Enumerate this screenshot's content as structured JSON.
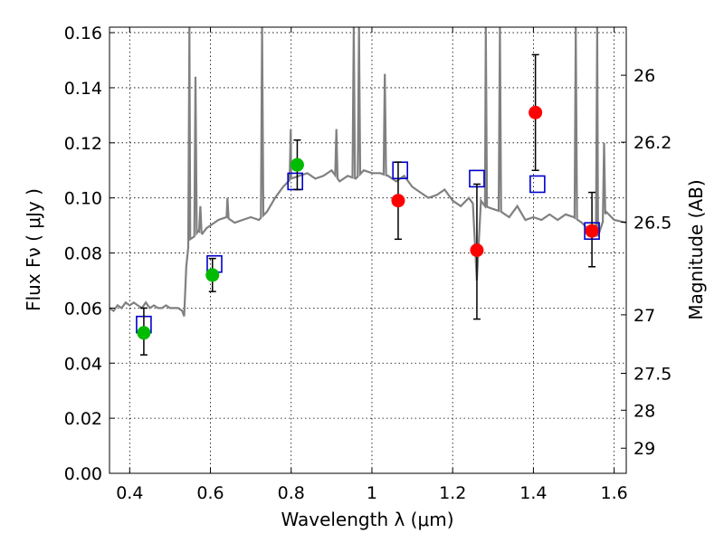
{
  "chart_data": {
    "type": "scatter",
    "xlabel": "Wavelength  λ (μm)",
    "ylabel": "Flux  Fν  ( μJy )",
    "ylabel2": "Magnitude (AB)",
    "xlim": [
      0.35,
      1.63
    ],
    "ylim": [
      0.0,
      0.162
    ],
    "grid": true,
    "x_ticks": [
      0.4,
      0.6,
      0.8,
      1.0,
      1.2,
      1.4,
      1.6
    ],
    "x_tick_labels": [
      "0.4",
      "0.6",
      "0.8",
      "1",
      "1.2",
      "1.4",
      "1.6"
    ],
    "y_ticks": [
      0.0,
      0.02,
      0.04,
      0.06,
      0.08,
      0.1,
      0.12,
      0.14,
      0.16
    ],
    "y_tick_labels": [
      "0.00",
      "0.02",
      "0.04",
      "0.06",
      "0.08",
      "0.10",
      "0.12",
      "0.14",
      "0.16"
    ],
    "mag_ticks": [
      26,
      26.2,
      26.5,
      27,
      27.5,
      28,
      29
    ],
    "mag_tick_labels": [
      "26",
      "26.2",
      "26.5",
      "27",
      "27.5",
      "28",
      "29"
    ],
    "colors": {
      "spectrum": "#808080",
      "model": "#0000cc",
      "green": "#00bb00",
      "red": "#ff0000",
      "errorbar": "#000000"
    },
    "spectrum": {
      "x": [
        0.35,
        0.36,
        0.37,
        0.38,
        0.39,
        0.4,
        0.41,
        0.42,
        0.43,
        0.44,
        0.45,
        0.46,
        0.47,
        0.48,
        0.49,
        0.5,
        0.52,
        0.53,
        0.535,
        0.54,
        0.545,
        0.55,
        0.56,
        0.57,
        0.58,
        0.59,
        0.6,
        0.62,
        0.64,
        0.66,
        0.68,
        0.7,
        0.72,
        0.74,
        0.76,
        0.78,
        0.8,
        0.82,
        0.84,
        0.86,
        0.88,
        0.9,
        0.92,
        0.94,
        0.96,
        0.98,
        1.0,
        1.02,
        1.04,
        1.06,
        1.08,
        1.1,
        1.12,
        1.14,
        1.16,
        1.18,
        1.2,
        1.22,
        1.24,
        1.25,
        1.26,
        1.27,
        1.28,
        1.3,
        1.32,
        1.34,
        1.36,
        1.38,
        1.4,
        1.42,
        1.44,
        1.46,
        1.48,
        1.5,
        1.52,
        1.54,
        1.56,
        1.58,
        1.6,
        1.63
      ],
      "y": [
        0.06,
        0.059,
        0.061,
        0.06,
        0.062,
        0.061,
        0.062,
        0.061,
        0.06,
        0.062,
        0.06,
        0.061,
        0.06,
        0.06,
        0.061,
        0.06,
        0.06,
        0.059,
        0.057,
        0.075,
        0.082,
        0.085,
        0.086,
        0.088,
        0.087,
        0.089,
        0.09,
        0.092,
        0.093,
        0.091,
        0.092,
        0.093,
        0.092,
        0.095,
        0.1,
        0.104,
        0.107,
        0.108,
        0.109,
        0.107,
        0.108,
        0.11,
        0.106,
        0.108,
        0.107,
        0.11,
        0.109,
        0.109,
        0.108,
        0.106,
        0.108,
        0.104,
        0.102,
        0.1,
        0.101,
        0.103,
        0.099,
        0.097,
        0.1,
        0.098,
        0.07,
        0.099,
        0.097,
        0.096,
        0.095,
        0.093,
        0.097,
        0.092,
        0.093,
        0.092,
        0.094,
        0.092,
        0.094,
        0.093,
        0.091,
        0.088,
        0.086,
        0.095,
        0.092,
        0.091
      ]
    },
    "emission_lines": [
      {
        "x": 0.548,
        "peak": 0.175
      },
      {
        "x": 0.563,
        "peak": 0.144
      },
      {
        "x": 0.575,
        "peak": 0.097
      },
      {
        "x": 0.642,
        "peak": 0.1
      },
      {
        "x": 0.728,
        "peak": 0.175
      },
      {
        "x": 0.799,
        "peak": 0.125
      },
      {
        "x": 0.912,
        "peak": 0.125
      },
      {
        "x": 0.955,
        "peak": 0.175
      },
      {
        "x": 0.968,
        "peak": 0.175
      },
      {
        "x": 1.032,
        "peak": 0.145
      },
      {
        "x": 1.282,
        "peak": 0.175
      },
      {
        "x": 1.317,
        "peak": 0.162
      },
      {
        "x": 1.505,
        "peak": 0.175
      },
      {
        "x": 1.558,
        "peak": 0.175
      },
      {
        "x": 1.575,
        "peak": 0.12
      }
    ],
    "series": [
      {
        "marker": "square",
        "x": [
          0.435,
          0.61,
          0.81,
          1.07,
          1.26,
          1.41,
          1.545
        ],
        "y": [
          0.054,
          0.076,
          0.106,
          0.11,
          0.107,
          0.105,
          0.088
        ]
      },
      {
        "marker": "circle",
        "color": "green",
        "x": [
          0.435,
          0.605,
          0.815
        ],
        "y": [
          0.051,
          0.072,
          0.112
        ],
        "yerr": [
          [
            0.043,
            0.06
          ],
          [
            0.066,
            0.078
          ],
          [
            0.103,
            0.121
          ]
        ]
      },
      {
        "marker": "circle",
        "color": "red",
        "x": [
          1.065,
          1.26,
          1.405,
          1.545
        ],
        "y": [
          0.099,
          0.081,
          0.131,
          0.088
        ],
        "yerr": [
          [
            0.085,
            0.113
          ],
          [
            0.056,
            0.105
          ],
          [
            0.11,
            0.152
          ],
          [
            0.075,
            0.102
          ]
        ]
      }
    ]
  }
}
